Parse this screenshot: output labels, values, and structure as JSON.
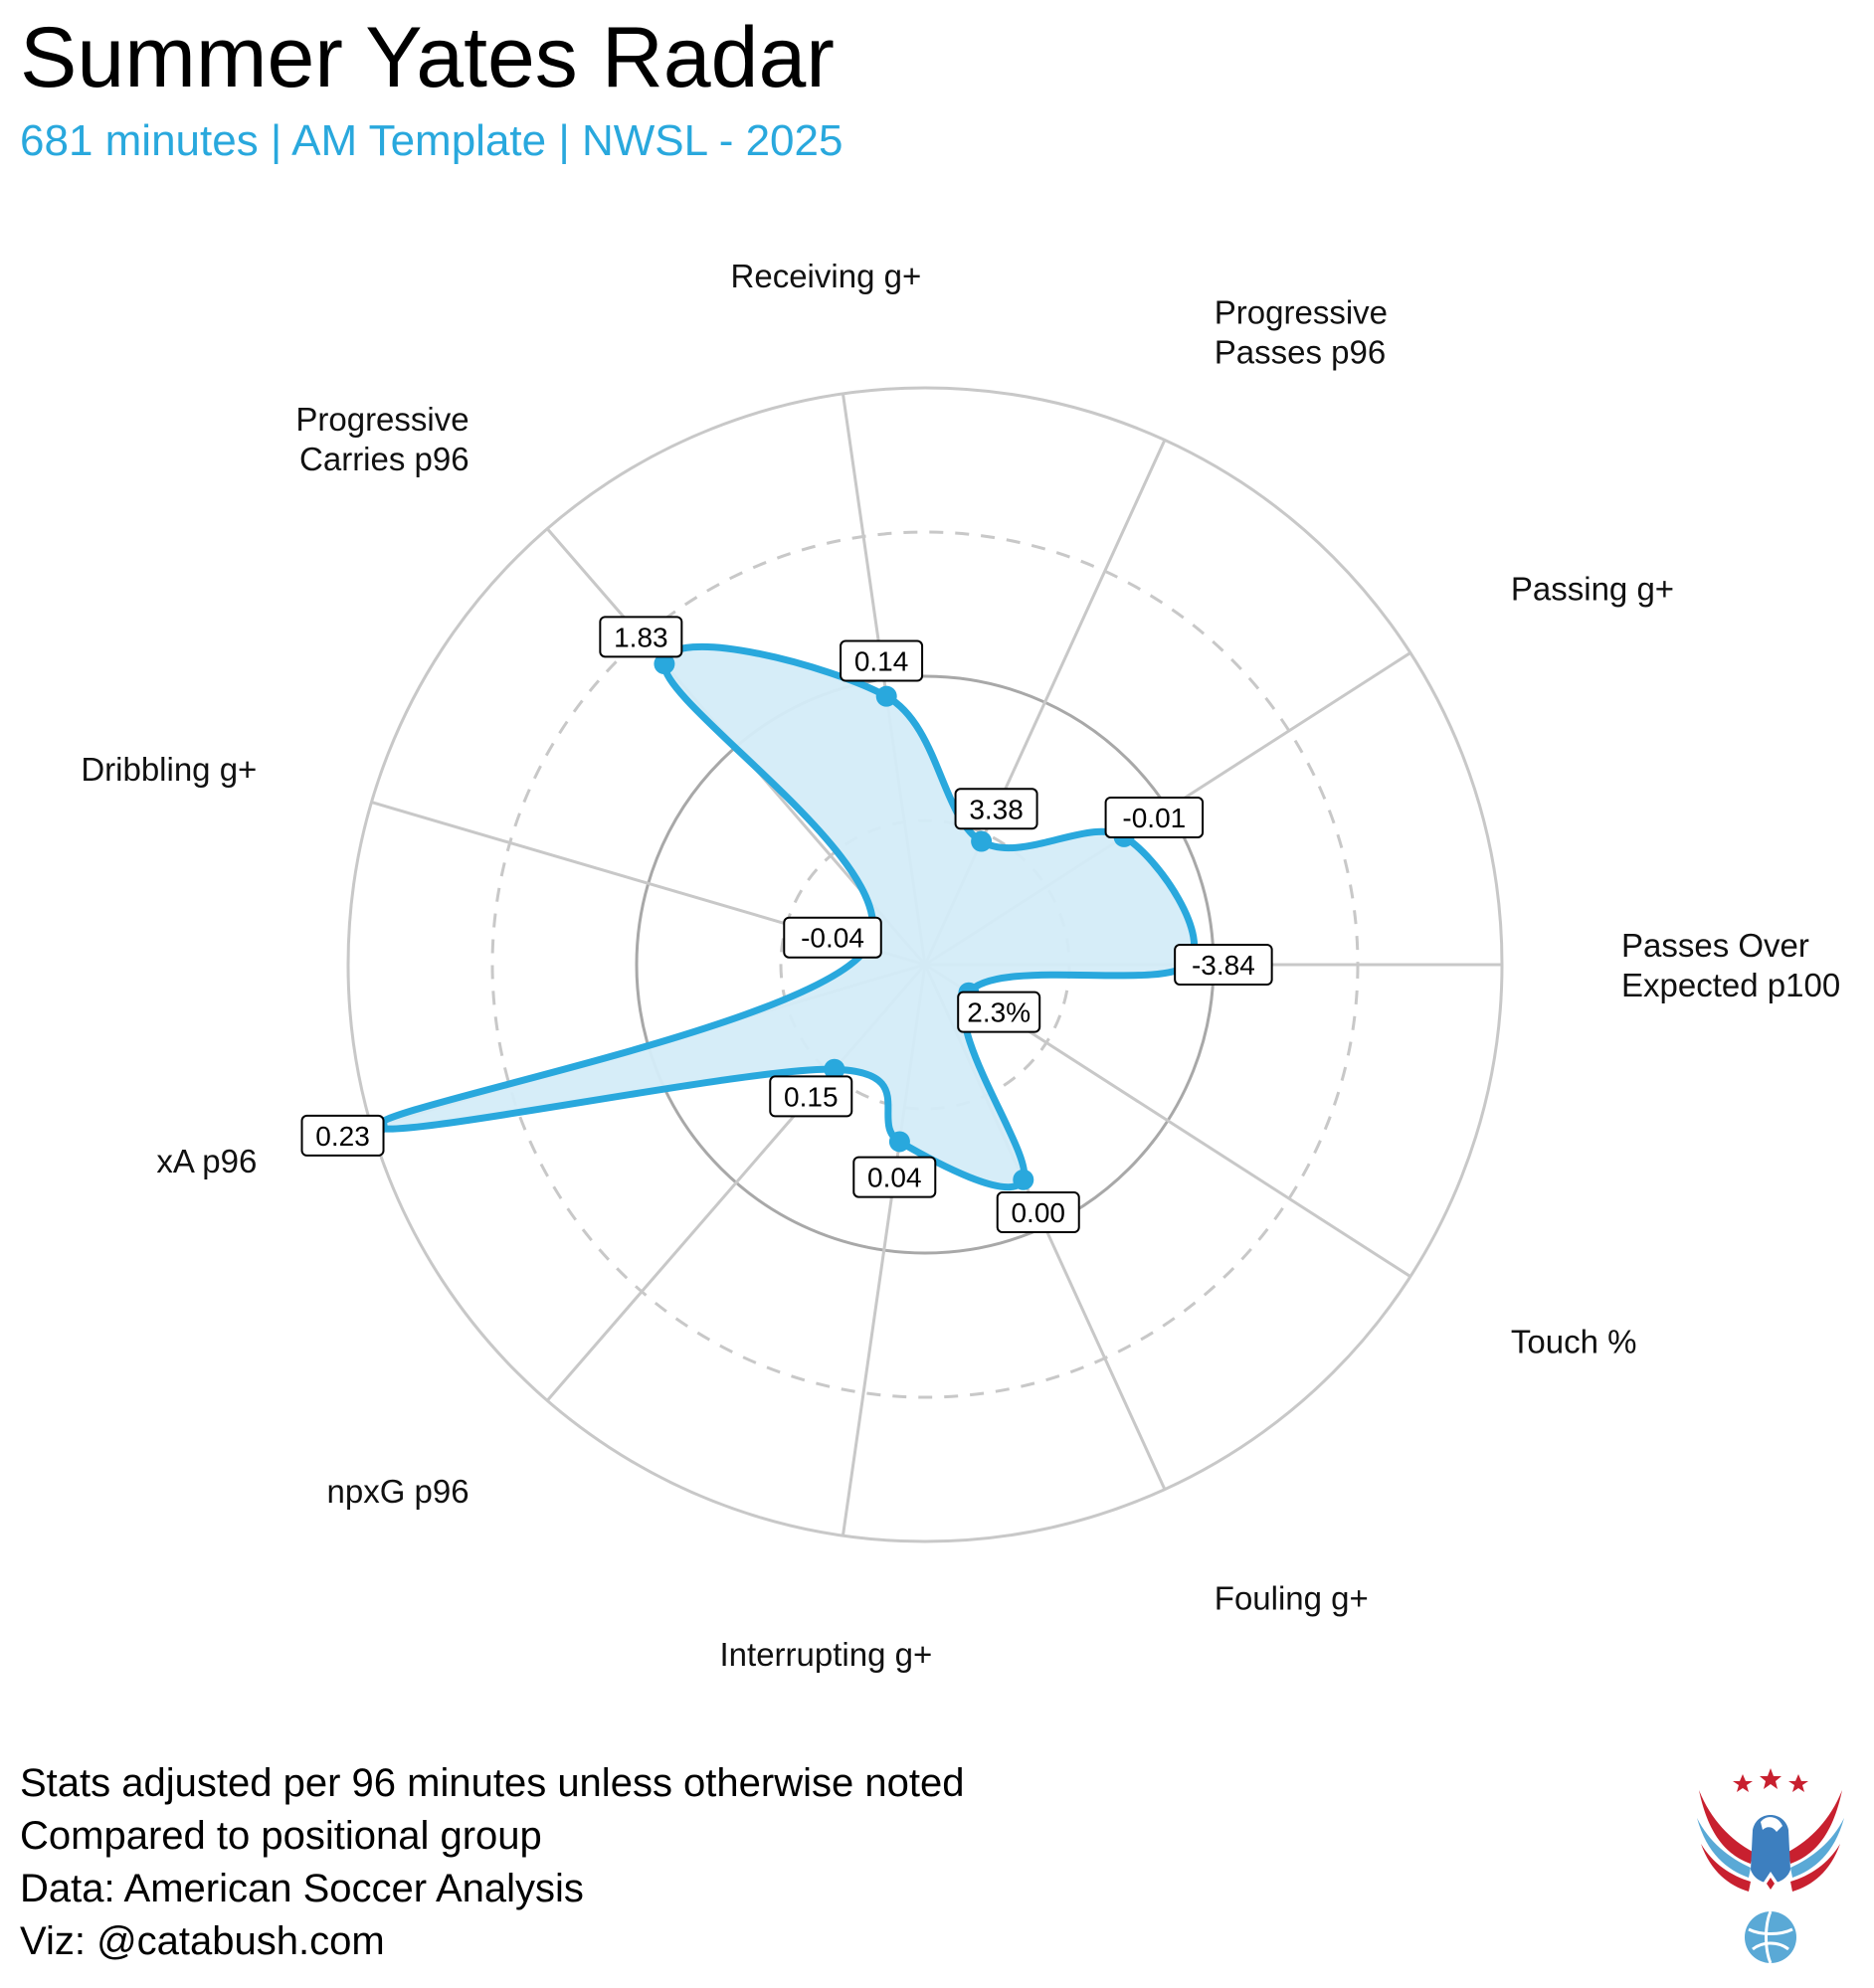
{
  "header": {
    "title": "Summer Yates Radar",
    "subtitle": "681 minutes | AM Template | NWSL - 2025"
  },
  "chart_data": {
    "type": "radar",
    "axes": [
      {
        "label": [
          "Passes Over",
          "Expected p100"
        ],
        "value_label": "-3.84",
        "score": 0.455
      },
      {
        "label": [
          "Passing g+"
        ],
        "value_label": "-0.01",
        "score": 0.41
      },
      {
        "label": [
          "Progressive",
          "Passes p96"
        ],
        "value_label": "3.38",
        "score": 0.235
      },
      {
        "label": [
          "Receiving g+"
        ],
        "value_label": "0.14",
        "score": 0.47
      },
      {
        "label": [
          "Progressive",
          "Carries p96"
        ],
        "value_label": "1.83",
        "score": 0.69
      },
      {
        "label": [
          "Dribbling g+"
        ],
        "value_label": "-0.04",
        "score": 0.105
      },
      {
        "label": [
          "xA p96"
        ],
        "value_label": "0.23",
        "score": 0.99
      },
      {
        "label": [
          "npxG p96"
        ],
        "value_label": "0.15",
        "score": 0.24
      },
      {
        "label": [
          "Interrupting g+"
        ],
        "value_label": "0.04",
        "score": 0.31
      },
      {
        "label": [
          "Fouling g+"
        ],
        "value_label": "0.00",
        "score": 0.41
      },
      {
        "label": [
          "Touch %"
        ],
        "value_label": "2.3%",
        "score": 0.09
      }
    ],
    "range": [
      0,
      1
    ],
    "series_color": "#29a8dd",
    "fill_color": "#d4ecf8"
  },
  "footer": {
    "lines": [
      "Stats adjusted per 96 minutes unless otherwise noted",
      "Compared to positional group",
      "Data: American Soccer Analysis",
      "Viz: @catabush.com"
    ]
  }
}
